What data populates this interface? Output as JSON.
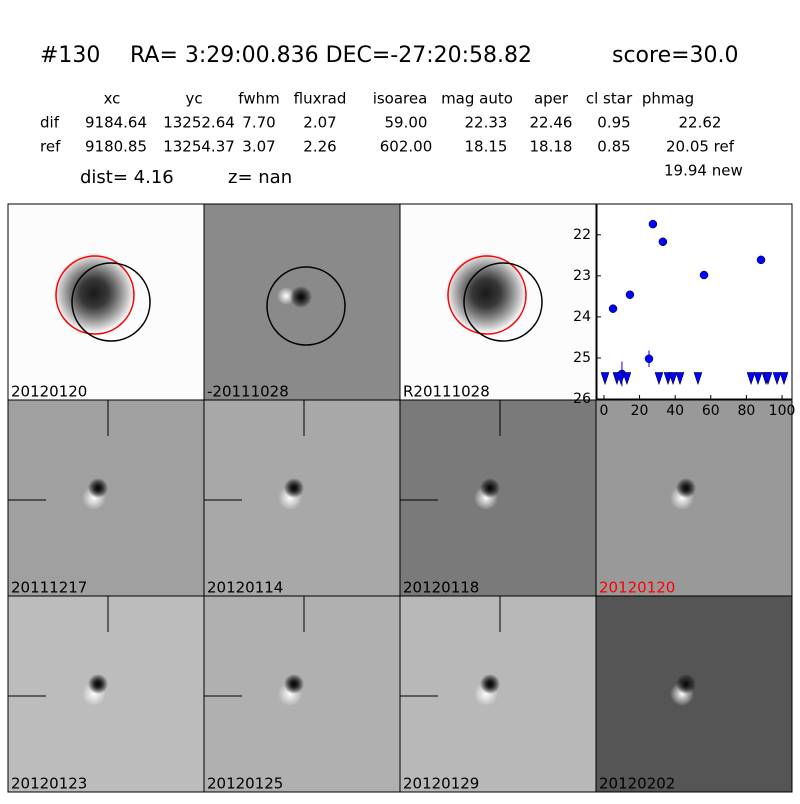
{
  "header": {
    "id": "#130",
    "coords": "RA= 3:29:00.836 DEC=-27:20:58.82",
    "score": "score=30.0"
  },
  "table": {
    "columns": [
      "xc",
      "yc",
      "fwhm",
      "fluxrad",
      "isoarea",
      "mag auto",
      "aper",
      "cl star",
      "phmag"
    ],
    "rows": [
      [
        "dif",
        "9184.64",
        "13252.64",
        "7.70",
        "2.07",
        "59.00",
        "22.33",
        "22.46",
        "0.95",
        "22.62"
      ],
      [
        "ref",
        "9180.85",
        "13254.37",
        "3.07",
        "2.26",
        "602.00",
        "18.15",
        "18.18",
        "0.85",
        "20.05 ref"
      ]
    ],
    "extra": "19.94 new",
    "dist": "dist=  4.16",
    "z": "z=   nan"
  },
  "panels": [
    {
      "label": "20120120"
    },
    {
      "label": "-20111028"
    },
    {
      "label": "R20111028"
    },
    {
      "label": "20111217"
    },
    {
      "label": "20120114"
    },
    {
      "label": "20120118"
    },
    {
      "label": "20120120",
      "color": "#ff0000"
    },
    {
      "label": "20120123"
    },
    {
      "label": "20120125"
    },
    {
      "label": "20120129"
    },
    {
      "label": "20120202"
    }
  ],
  "chart_data": {
    "type": "scatter",
    "xlim": [
      -3.9,
      105.6
    ],
    "ylim": [
      26,
      21.25
    ],
    "xticks": [
      0,
      20,
      40,
      60,
      80,
      100
    ],
    "yticks": [
      22,
      23,
      24,
      25,
      26
    ],
    "series": [
      {
        "marker": "o",
        "color": "#0000ff",
        "x": [
          27.5,
          33.1,
          56.2,
          88.2,
          5.1,
          14.6,
          25.3,
          10.1
        ],
        "values": [
          21.74,
          22.17,
          22.98,
          22.61,
          23.8,
          23.46,
          25.02,
          25.39
        ],
        "errors": [
          0.03,
          0.04,
          0.05,
          0.05,
          0.06,
          0.05,
          0.2,
          0.3
        ]
      },
      {
        "marker": "v",
        "color": "#0000ff",
        "x": [
          0.6,
          7.3,
          9.6,
          12.9,
          30.9,
          36,
          38.8,
          42.7,
          52.8,
          82.6,
          86.5,
          91,
          92.1,
          97.2,
          101.1
        ],
        "values": [
          25.5,
          25.5,
          25.5,
          25.5,
          25.5,
          25.5,
          25.5,
          25.5,
          25.5,
          25.5,
          25.5,
          25.5,
          25.5,
          25.5,
          25.5
        ]
      }
    ]
  }
}
